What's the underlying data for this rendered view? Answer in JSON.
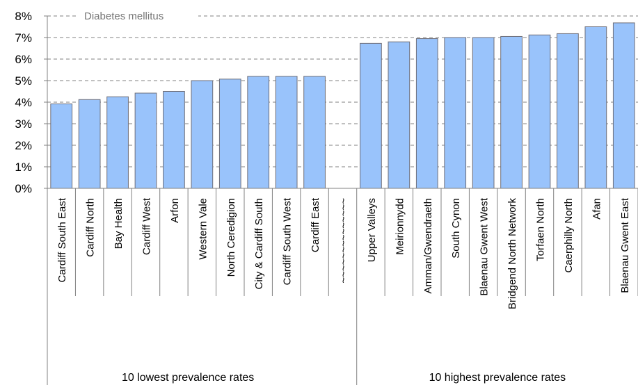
{
  "chart_data": {
    "type": "bar",
    "title": "Diabetes mellitus",
    "ylim": [
      0,
      8
    ],
    "yticks": [
      "0%",
      "1%",
      "2%",
      "3%",
      "4%",
      "5%",
      "6%",
      "7%",
      "8%"
    ],
    "grid": true,
    "categories": [
      "Cardiff South East",
      "Cardiff North",
      "Bay Health",
      "Cardiff West",
      "Arfon",
      "Western Vale",
      "North Ceredigion",
      "City & Cardiff South",
      "Cardiff South West",
      "Cardiff East",
      "~~~~~~~~~~~~~~",
      "Upper Valleys",
      "Meirionnydd",
      "Amman/Gwendraeth",
      "South Cynon",
      "Blaenau Gwent West",
      "Bridgend North Network",
      "Torfaen North",
      "Caerphilly North",
      "Afan",
      "Blaenau Gwent East"
    ],
    "values": [
      3.92,
      4.12,
      4.25,
      4.42,
      4.5,
      5.0,
      5.07,
      5.2,
      5.2,
      5.2,
      null,
      6.73,
      6.8,
      6.95,
      7.0,
      7.0,
      7.05,
      7.12,
      7.18,
      7.5,
      7.68
    ],
    "groups": [
      {
        "label": "10 lowest prevalence rates"
      },
      {
        "label": "10 highest prevalence rates"
      }
    ],
    "colors": {
      "bar_fill": "#99c3fb",
      "bar_stroke": "#6e6e78",
      "grid": "#808080",
      "axis": "#808080",
      "title": "#777777"
    }
  }
}
